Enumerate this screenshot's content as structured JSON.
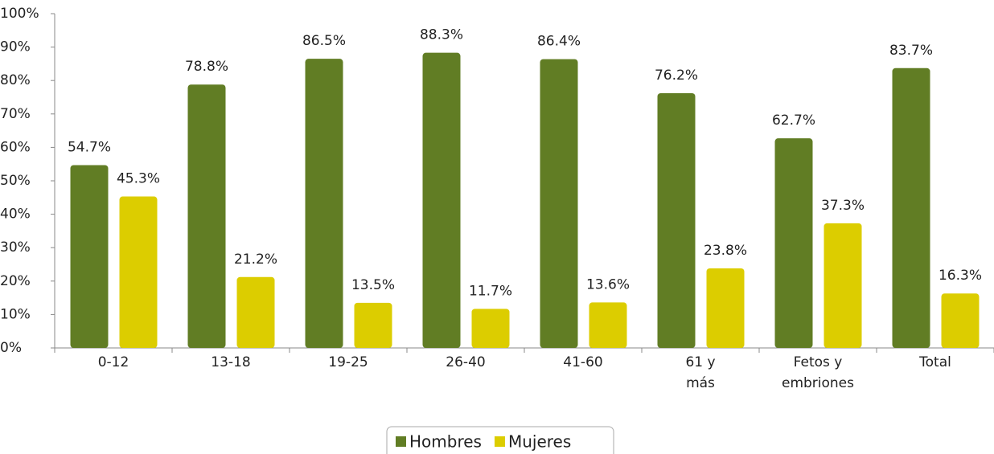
{
  "chart_data": {
    "type": "bar",
    "categories": [
      "0-12",
      "13-18",
      "19-25",
      "26-40",
      "41-60",
      "61 y más",
      "Fetos y embriones",
      "Total"
    ],
    "series": [
      {
        "name": "Hombres",
        "color": "#617d24",
        "values": [
          54.7,
          78.8,
          86.5,
          88.3,
          86.4,
          76.2,
          62.7,
          83.7
        ],
        "value_labels": [
          "54.7%",
          "78.8%",
          "86.5%",
          "88.3%",
          "86.4%",
          "76.2%",
          "62.7%",
          "83.7%"
        ]
      },
      {
        "name": "Mujeres",
        "color": "#dccd00",
        "values": [
          45.3,
          21.2,
          13.5,
          11.7,
          13.6,
          23.8,
          37.3,
          16.3
        ],
        "value_labels": [
          "45.3%",
          "21.2%",
          "13.5%",
          "11.7%",
          "13.6%",
          "23.8%",
          "37.3%",
          "16.3%"
        ]
      }
    ],
    "ylim": [
      0,
      100
    ],
    "yticks": [
      {
        "value": 0,
        "label": "0%"
      },
      {
        "value": 10,
        "label": "10%"
      },
      {
        "value": 20,
        "label": "20%"
      },
      {
        "value": 30,
        "label": "30%"
      },
      {
        "value": 40,
        "label": "40%"
      },
      {
        "value": 50,
        "label": "50%"
      },
      {
        "value": 60,
        "label": "60%"
      },
      {
        "value": 70,
        "label": "70%"
      },
      {
        "value": 80,
        "label": "80%"
      },
      {
        "value": 90,
        "label": "90%"
      },
      {
        "value": 100,
        "label": "100%"
      }
    ],
    "legend": "bottom"
  }
}
